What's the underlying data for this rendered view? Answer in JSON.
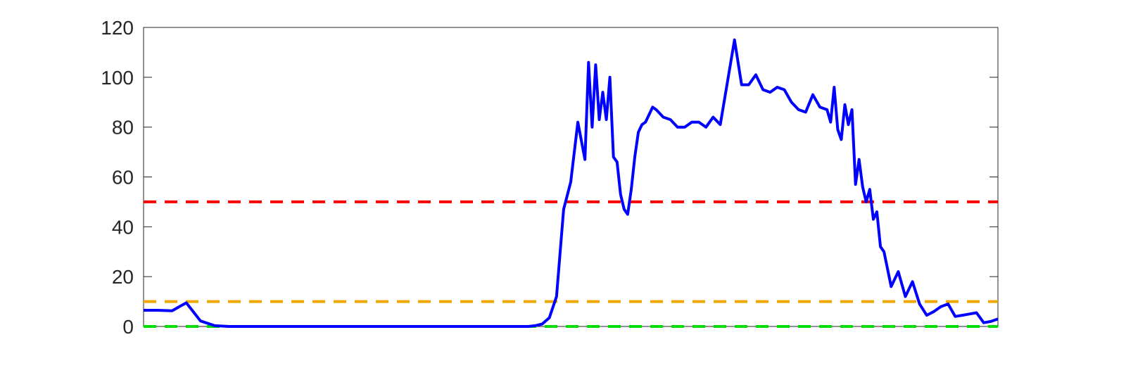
{
  "chart_data": {
    "type": "line",
    "title": "",
    "xlabel": "",
    "ylabel": "",
    "xlim": [
      0,
      240
    ],
    "ylim": [
      0,
      120
    ],
    "yticks": [
      "0",
      "20",
      "40",
      "60",
      "80",
      "100",
      "120"
    ],
    "grid": false,
    "legend": "none",
    "series": [
      {
        "color": "#0000ff",
        "x": [
          0,
          4,
          8,
          12,
          16,
          20,
          24,
          28,
          32,
          36,
          40,
          44,
          48,
          52,
          56,
          60,
          64,
          68,
          72,
          76,
          80,
          84,
          88,
          92,
          96,
          100,
          104,
          108,
          110,
          112,
          114,
          116,
          118,
          120,
          122,
          124,
          125,
          126,
          127,
          128,
          129,
          130,
          131,
          132,
          133,
          134,
          135,
          136,
          137,
          138,
          139,
          140,
          141,
          142,
          143,
          144,
          146,
          148,
          150,
          152,
          154,
          156,
          158,
          160,
          162,
          164,
          166,
          168,
          170,
          172,
          174,
          176,
          178,
          180,
          182,
          184,
          186,
          188,
          190,
          192,
          193,
          194,
          195,
          196,
          197,
          198,
          199,
          200,
          201,
          202,
          203,
          204,
          205,
          206,
          207,
          208,
          210,
          212,
          214,
          216,
          218,
          220,
          222,
          224,
          226,
          228,
          230,
          232,
          234,
          236,
          238,
          240
        ],
        "y": [
          6.5,
          6.5,
          6.3,
          9.5,
          2.2,
          0.3,
          0,
          0,
          0,
          0,
          0,
          0,
          0,
          0,
          0,
          0,
          0,
          0,
          0,
          0,
          0,
          0,
          0,
          0,
          0,
          0,
          0,
          0,
          0.3,
          1,
          3.5,
          12,
          47,
          58,
          82,
          67,
          106,
          80,
          105,
          83,
          94,
          83,
          100,
          68,
          66,
          53,
          47,
          45,
          55,
          68,
          78,
          81,
          82,
          85,
          88,
          87,
          84,
          83,
          80,
          80,
          82,
          82,
          80,
          84,
          81,
          98,
          115,
          97,
          97,
          101,
          95,
          94,
          96,
          95,
          90,
          87,
          86,
          93,
          88,
          87,
          82,
          96,
          79,
          75,
          89,
          81,
          87,
          57,
          67,
          56,
          50,
          55,
          43,
          46,
          32,
          30,
          16,
          22,
          12,
          18,
          9,
          4.5,
          6,
          8,
          9,
          4,
          4.5,
          5,
          5.5,
          1.5,
          2,
          3
        ]
      }
    ],
    "reference_lines": [
      {
        "y": 50,
        "color": "#ff0000",
        "style": "dashed"
      },
      {
        "y": 10,
        "color": "#f0a800",
        "style": "dashed"
      },
      {
        "y": 0,
        "color": "#00dd00",
        "style": "dashed"
      }
    ]
  }
}
